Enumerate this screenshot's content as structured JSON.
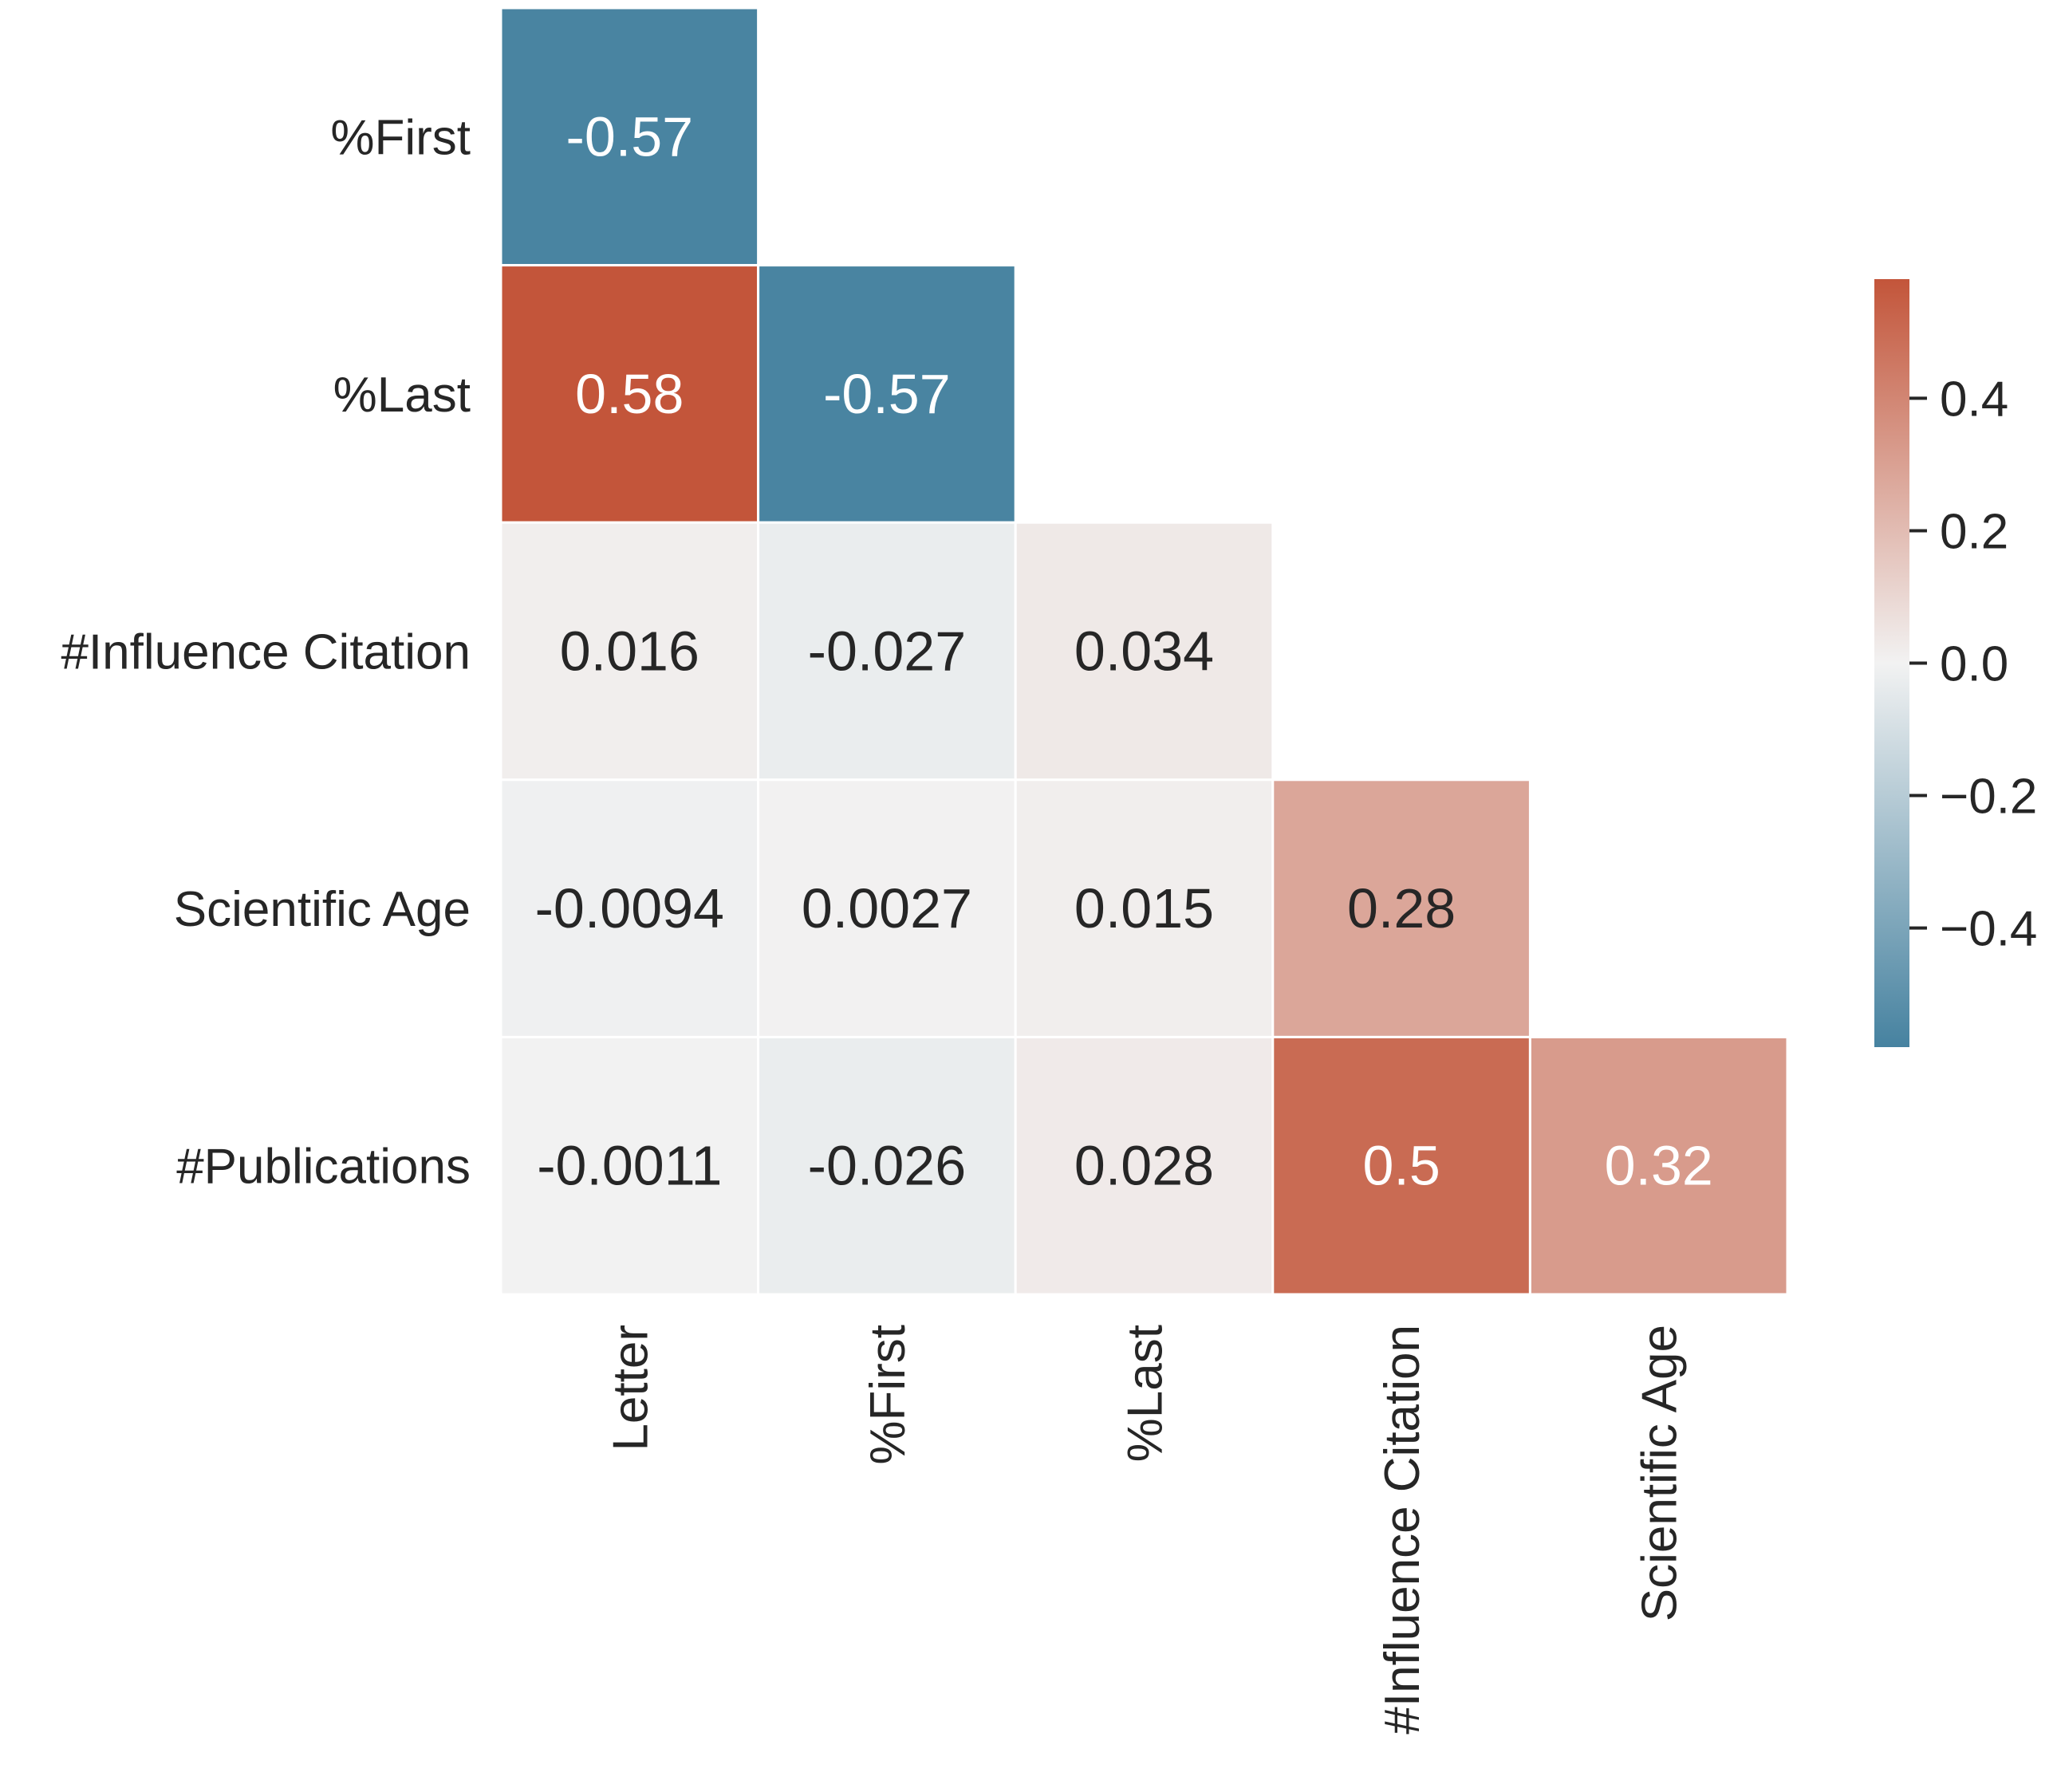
{
  "chart_data": {
    "type": "heatmap",
    "title": "",
    "row_labels": [
      "%First",
      "%Last",
      "#Influence Citation",
      "Scientific Age",
      "#Publications"
    ],
    "col_labels": [
      "Letter",
      "%First",
      "%Last",
      "#Influence Citation",
      "Scientific Age"
    ],
    "mask": "upper-triangle",
    "values": [
      [
        -0.57,
        null,
        null,
        null,
        null
      ],
      [
        0.58,
        -0.57,
        null,
        null,
        null
      ],
      [
        0.016,
        -0.027,
        0.034,
        null,
        null
      ],
      [
        -0.0094,
        0.0027,
        0.015,
        0.28,
        null
      ],
      [
        -0.0011,
        -0.026,
        0.028,
        0.5,
        0.32
      ]
    ],
    "cell_text": [
      [
        "-0.57",
        null,
        null,
        null,
        null
      ],
      [
        "0.58",
        "-0.57",
        null,
        null,
        null
      ],
      [
        "0.016",
        "-0.027",
        "0.034",
        null,
        null
      ],
      [
        "-0.0094",
        "0.0027",
        "0.015",
        "0.28",
        null
      ],
      [
        "-0.0011",
        "-0.026",
        "0.028",
        "0.5",
        "0.32"
      ]
    ],
    "colorbar": {
      "vmin": -0.58,
      "vmax": 0.58,
      "ticks": [
        0.4,
        0.2,
        0.0,
        -0.2,
        -0.4
      ],
      "tick_labels": [
        "0.4",
        "0.2",
        "0.0",
        "−0.2",
        "−0.4"
      ],
      "low_color": "#4682a0",
      "mid_color": "#f2f2f2",
      "high_color": "#c3553a"
    },
    "grid_line_color": "#ffffff",
    "text_color_light": "#ffffff",
    "text_color_dark": "#262626"
  }
}
